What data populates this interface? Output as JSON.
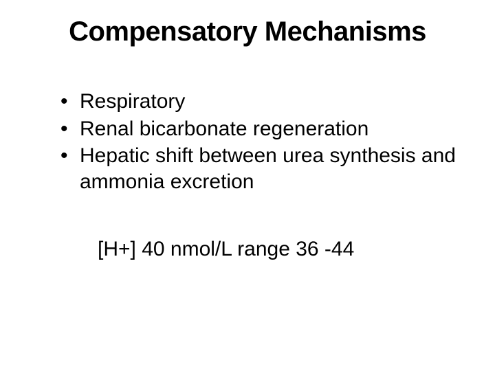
{
  "slide": {
    "title": "Compensatory Mechanisms",
    "title_fontsize": 40,
    "title_fontweight": "bold",
    "title_color": "#000000",
    "background_color": "#ffffff",
    "bullets": [
      "Respiratory",
      "Renal bicarbonate regeneration",
      "Hepatic shift between urea synthesis and ammonia excretion"
    ],
    "bullet_fontsize": 30,
    "bullet_color": "#000000",
    "bottom_line": "[H+]   40 nmol/L  range 36 -44",
    "bottom_fontsize": 30,
    "bottom_color": "#000000"
  }
}
